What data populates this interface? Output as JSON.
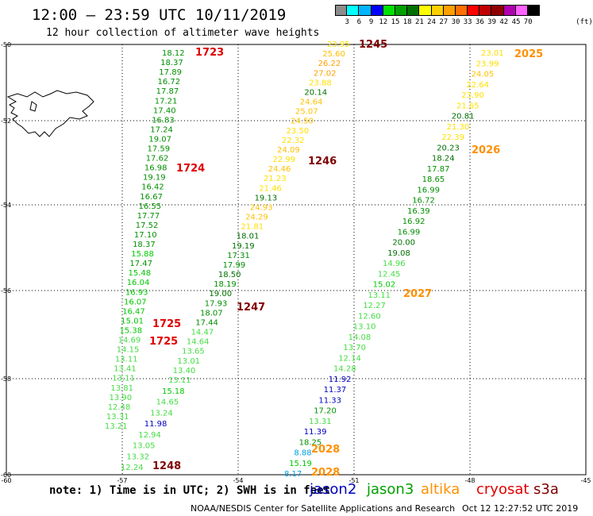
{
  "header": {
    "title": "12:00 – 23:59 UTC 10/11/2019",
    "subtitle": "12 hour collection of altimeter wave heights"
  },
  "color_scale": {
    "unit": "(ft)",
    "stops": [
      {
        "label": "3",
        "color": "#8c8c8c"
      },
      {
        "label": "6",
        "color": "#00ffff"
      },
      {
        "label": "9",
        "color": "#00b4ff"
      },
      {
        "label": "12",
        "color": "#0000ff"
      },
      {
        "label": "15",
        "color": "#00e000"
      },
      {
        "label": "18",
        "color": "#00a000"
      },
      {
        "label": "21",
        "color": "#007000"
      },
      {
        "label": "24",
        "color": "#ffff00"
      },
      {
        "label": "27",
        "color": "#ffd000"
      },
      {
        "label": "30",
        "color": "#ffa000"
      },
      {
        "label": "33",
        "color": "#ff7000"
      },
      {
        "label": "36",
        "color": "#ff0000"
      },
      {
        "label": "39",
        "color": "#c00000"
      },
      {
        "label": "42",
        "color": "#900000"
      },
      {
        "label": "45",
        "color": "#b000b0"
      },
      {
        "label": "70",
        "color": "#ff60ff"
      },
      {
        "label": "",
        "color": "#000000"
      }
    ]
  },
  "axes": {
    "lat_labels": [
      "-50",
      "-52",
      "-54",
      "-56",
      "-58",
      "-60"
    ],
    "lon_labels": [
      "-60",
      "-57",
      "-54",
      "-51",
      "-48",
      "-45"
    ]
  },
  "passes": [
    {
      "color_group": "track1",
      "points": [
        [
          "18.12",
          "#009000"
        ],
        [
          "18.37",
          "#009000"
        ],
        [
          "17.89",
          "#009000"
        ],
        [
          "16.72",
          "#009000"
        ],
        [
          "17.87",
          "#009000"
        ],
        [
          "17.21",
          "#009000"
        ],
        [
          "17.40",
          "#009000"
        ],
        [
          "16.83",
          "#009000"
        ],
        [
          "17.24",
          "#009000"
        ],
        [
          "19.07",
          "#009000"
        ],
        [
          "17.59",
          "#009000"
        ],
        [
          "17.62",
          "#009000"
        ],
        [
          "16.98",
          "#009000"
        ],
        [
          "19.19",
          "#009000"
        ],
        [
          "16.42",
          "#009000"
        ],
        [
          "16.67",
          "#009000"
        ],
        [
          "16.55",
          "#009000"
        ],
        [
          "17.77",
          "#009000"
        ],
        [
          "17.52",
          "#009000"
        ],
        [
          "17.10",
          "#009000"
        ],
        [
          "18.37",
          "#009000"
        ],
        [
          "15.88",
          "#00c800"
        ],
        [
          "17.47",
          "#009000"
        ],
        [
          "15.48",
          "#00c800"
        ],
        [
          "16.04",
          "#00c800"
        ],
        [
          "16.93",
          "#00c800"
        ],
        [
          "16.07",
          "#00c800"
        ],
        [
          "16.47",
          "#00c800"
        ],
        [
          "15.01",
          "#00c800"
        ],
        [
          "15.38",
          "#00c800"
        ],
        [
          "14.69",
          "#44dd44"
        ],
        [
          "14.15",
          "#44dd44"
        ],
        [
          "13.11",
          "#44dd44"
        ],
        [
          "13.41",
          "#44dd44"
        ],
        [
          "13.11",
          "#44dd44"
        ],
        [
          "13.81",
          "#44dd44"
        ],
        [
          "13.90",
          "#44dd44"
        ],
        [
          "12.48",
          "#44dd44"
        ],
        [
          "13.31",
          "#44dd44"
        ],
        [
          "13.21",
          "#44dd44"
        ]
      ]
    },
    {
      "color_group": "track2",
      "points": [
        [
          "15.18",
          "#00c800"
        ],
        [
          "14.65",
          "#44dd44"
        ],
        [
          "13.24",
          "#44dd44"
        ],
        [
          "11.98",
          "#0000c0"
        ],
        [
          "12.94",
          "#44dd44"
        ],
        [
          "13.05",
          "#44dd44"
        ],
        [
          "13.32",
          "#44dd44"
        ],
        [
          "12.24",
          "#44dd44"
        ]
      ]
    },
    {
      "color_group": "track3",
      "points": [
        [
          "23.95",
          "#ffe000"
        ],
        [
          "25.60",
          "#ffc000"
        ],
        [
          "26.22",
          "#ffa000"
        ],
        [
          "27.02",
          "#ffa000"
        ],
        [
          "23.88",
          "#ffe000"
        ],
        [
          "20.14",
          "#007000"
        ],
        [
          "24.64",
          "#ffc000"
        ],
        [
          "25.07",
          "#ffc000"
        ],
        [
          "24.50",
          "#ffc000"
        ],
        [
          "23.50",
          "#ffe000"
        ],
        [
          "22.32",
          "#ffe000"
        ],
        [
          "24.09",
          "#ffc000"
        ],
        [
          "22.99",
          "#ffe000"
        ],
        [
          "24.46",
          "#ffc000"
        ],
        [
          "21.23",
          "#ffe000"
        ],
        [
          "21.46",
          "#ffe000"
        ],
        [
          "19.13",
          "#007000"
        ],
        [
          "24.93",
          "#ffc000"
        ],
        [
          "24.29",
          "#ffc000"
        ],
        [
          "21.81",
          "#ffe000"
        ],
        [
          "18.01",
          "#007000"
        ],
        [
          "19.19",
          "#007000"
        ],
        [
          "17.31",
          "#009000"
        ],
        [
          "17.99",
          "#009000"
        ],
        [
          "18.50",
          "#007000"
        ],
        [
          "18.19",
          "#009000"
        ],
        [
          "19.00",
          "#007000"
        ],
        [
          "17.93",
          "#009000"
        ],
        [
          "18.07",
          "#009000"
        ],
        [
          "17.44",
          "#009000"
        ],
        [
          "14.47",
          "#44dd44"
        ],
        [
          "14.64",
          "#44dd44"
        ],
        [
          "13.65",
          "#44dd44"
        ],
        [
          "13.01",
          "#44dd44"
        ],
        [
          "13.40",
          "#44dd44"
        ],
        [
          "13.11",
          "#44dd44"
        ]
      ]
    },
    {
      "color_group": "track4",
      "points": [
        [
          "23.01",
          "#ffe000"
        ],
        [
          "23.99",
          "#ffe000"
        ],
        [
          "24.05",
          "#ffc000"
        ],
        [
          "22.64",
          "#ffe000"
        ],
        [
          "23.90",
          "#ffe000"
        ],
        [
          "21.65",
          "#ffe000"
        ],
        [
          "20.81",
          "#007000"
        ],
        [
          "21.30",
          "#ffe000"
        ],
        [
          "22.39",
          "#ffe000"
        ],
        [
          "20.23",
          "#007000"
        ],
        [
          "18.24",
          "#007000"
        ],
        [
          "17.87",
          "#009000"
        ],
        [
          "18.65",
          "#009000"
        ],
        [
          "16.99",
          "#009000"
        ],
        [
          "16.72",
          "#009000"
        ],
        [
          "16.39",
          "#009000"
        ],
        [
          "16.92",
          "#009000"
        ],
        [
          "16.99",
          "#009000"
        ],
        [
          "20.00",
          "#007000"
        ],
        [
          "19.08",
          "#007000"
        ],
        [
          "14.96",
          "#44dd44"
        ],
        [
          "12.45",
          "#44dd44"
        ],
        [
          "15.02",
          "#00c800"
        ],
        [
          "13.11",
          "#44dd44"
        ],
        [
          "12.27",
          "#44dd44"
        ],
        [
          "12.60",
          "#44dd44"
        ],
        [
          "13.10",
          "#44dd44"
        ],
        [
          "14.08",
          "#44dd44"
        ],
        [
          "13.70",
          "#44dd44"
        ],
        [
          "12.14",
          "#44dd44"
        ],
        [
          "14.28",
          "#44dd44"
        ],
        [
          "11.92",
          "#0000c0"
        ],
        [
          "11.37",
          "#0000c0"
        ],
        [
          "11.33",
          "#0000c0"
        ],
        [
          "17.20",
          "#009000"
        ],
        [
          "13.31",
          "#44dd44"
        ],
        [
          "11.39",
          "#0000c0"
        ],
        [
          "18.25",
          "#009000"
        ],
        [
          "8.88",
          "#00a0e0"
        ],
        [
          "15.19",
          "#00c800"
        ],
        [
          "8.17",
          "#00a0e0"
        ]
      ]
    }
  ],
  "time_labels": [
    {
      "text": "1723",
      "color": "#e00000"
    },
    {
      "text": "1724",
      "color": "#e00000"
    },
    {
      "text": "1725",
      "color": "#e00000"
    },
    {
      "text": "1725",
      "color": "#e00000"
    },
    {
      "text": "1245",
      "color": "#800000"
    },
    {
      "text": "1246",
      "color": "#800000"
    },
    {
      "text": "1247",
      "color": "#800000"
    },
    {
      "text": "1248",
      "color": "#800000"
    },
    {
      "text": "2025",
      "color": "#ff9000"
    },
    {
      "text": "2026",
      "color": "#ff9000"
    },
    {
      "text": "2027",
      "color": "#ff9000"
    },
    {
      "text": "2028",
      "color": "#ff9000"
    },
    {
      "text": "2028",
      "color": "#ff9000"
    }
  ],
  "footer": {
    "note": "note: 1) Time is in UTC; 2) SWH is in feet",
    "satellites": [
      {
        "name": "jason2",
        "color": "#0000c0"
      },
      {
        "name": "jason3",
        "color": "#00a000"
      },
      {
        "name": "altika",
        "color": "#ff9000"
      },
      {
        "name": "cryosat",
        "color": "#e00000"
      },
      {
        "name": "s3a",
        "color": "#800000"
      }
    ],
    "credit": "NOAA/NESDIS Center for Satellite Applications and Research",
    "timestamp": "Oct 12 12:27:52 UTC 2019"
  }
}
